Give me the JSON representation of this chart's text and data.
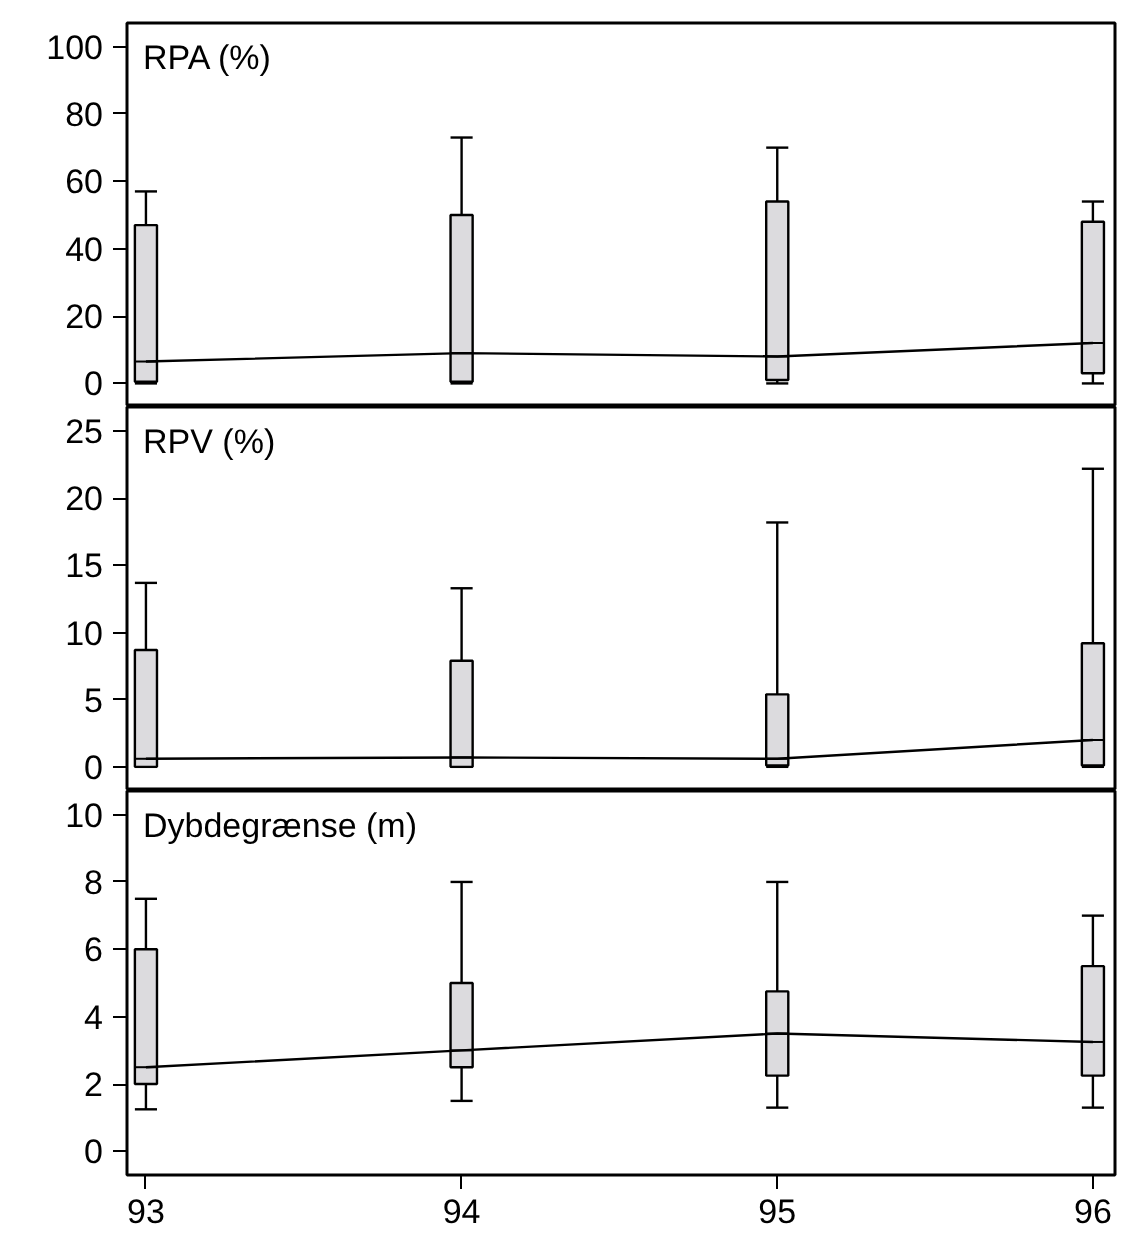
{
  "chart_data": [
    {
      "type": "box",
      "title": "RPA (%)",
      "x": [
        93,
        94,
        95,
        96
      ],
      "xlim": [
        92.94,
        96.07
      ],
      "ylim": [
        -7,
        107
      ],
      "yticks": [
        0,
        20,
        40,
        60,
        80,
        100
      ],
      "tick_labels": "y",
      "series": [
        {
          "color": "#dcdbde",
          "boxes": [
            {
              "low": 0,
              "q1": 0.5,
              "median": 6.5,
              "q3": 47,
              "high": 57
            },
            {
              "low": 0,
              "q1": 0.5,
              "median": 9,
              "q3": 50,
              "high": 73
            },
            {
              "low": 0,
              "q1": 1,
              "median": 8,
              "q3": 54,
              "high": 70
            },
            {
              "low": 0,
              "q1": 3,
              "median": 12,
              "q3": 48,
              "high": 54
            }
          ]
        },
        {
          "type": "line",
          "color": "#000000",
          "values": [
            6.5,
            9,
            8,
            12
          ]
        }
      ]
    },
    {
      "type": "box",
      "title": "RPV (%)",
      "x": [
        93,
        94,
        95,
        96
      ],
      "xlim": [
        92.94,
        96.07
      ],
      "ylim": [
        -1.8,
        26.8
      ],
      "yticks": [
        0,
        5,
        10,
        15,
        20,
        25
      ],
      "tick_labels": "y",
      "series": [
        {
          "color": "#dcdbde",
          "boxes": [
            {
              "low": 0,
              "q1": 0,
              "median": 0.6,
              "q3": 8.7,
              "high": 13.7
            },
            {
              "low": 0,
              "q1": 0,
              "median": 0.7,
              "q3": 7.9,
              "high": 13.3
            },
            {
              "low": 0,
              "q1": 0.1,
              "median": 0.6,
              "q3": 5.4,
              "high": 18.2
            },
            {
              "low": 0,
              "q1": 0.1,
              "median": 2,
              "q3": 9.2,
              "high": 22.2
            }
          ]
        },
        {
          "type": "line",
          "color": "#000000",
          "values": [
            0.6,
            0.7,
            0.6,
            2
          ]
        }
      ]
    },
    {
      "type": "box",
      "title": "Dybdegrænse (m)",
      "x": [
        93,
        94,
        95,
        96
      ],
      "xlim": [
        92.94,
        96.07
      ],
      "xticks": [
        93,
        94,
        95,
        96
      ],
      "ylim": [
        -0.7,
        10.7
      ],
      "yticks": [
        0,
        2,
        4,
        6,
        8,
        10
      ],
      "series": [
        {
          "color": "#dcdbde",
          "boxes": [
            {
              "low": 1.25,
              "q1": 2,
              "median": 2.5,
              "q3": 6,
              "high": 7.5
            },
            {
              "low": 1.5,
              "q1": 2.5,
              "median": 3,
              "q3": 5,
              "high": 8
            },
            {
              "low": 1.3,
              "q1": 2.25,
              "median": 3.5,
              "q3": 4.75,
              "high": 8
            },
            {
              "low": 1.3,
              "q1": 2.25,
              "median": 3.25,
              "q3": 5.5,
              "high": 7
            }
          ]
        },
        {
          "type": "line",
          "color": "#000000",
          "values": [
            2.5,
            3,
            3.5,
            3.25
          ]
        }
      ]
    }
  ]
}
